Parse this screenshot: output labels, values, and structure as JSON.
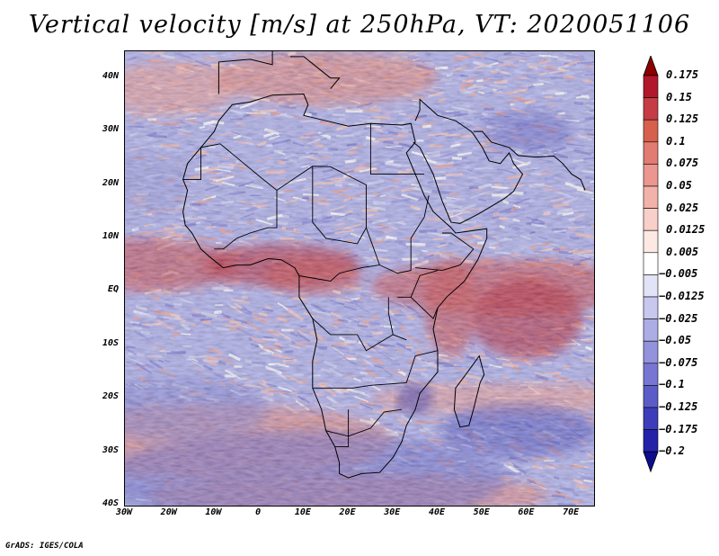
{
  "title": "Vertical velocity [m/s] at 250hPa, VT: 2020051106",
  "footer": "GrADS: IGES/COLA",
  "map": {
    "projection": "lat-lon",
    "lon_range": [
      -30,
      75
    ],
    "lat_range": [
      -40,
      45
    ],
    "field": "vertical velocity",
    "level": "250hPa",
    "units": "m/s",
    "valid_time": "2020051106",
    "overlays": [
      "coastlines",
      "country borders"
    ]
  },
  "lat_ticks": [
    {
      "value": 40,
      "label": "40N"
    },
    {
      "value": 30,
      "label": "30N"
    },
    {
      "value": 20,
      "label": "20N"
    },
    {
      "value": 10,
      "label": "10N"
    },
    {
      "value": 0,
      "label": "EQ"
    },
    {
      "value": -10,
      "label": "10S"
    },
    {
      "value": -20,
      "label": "20S"
    },
    {
      "value": -30,
      "label": "30S"
    },
    {
      "value": -40,
      "label": "40S"
    }
  ],
  "lon_ticks": [
    {
      "value": -30,
      "label": "30W"
    },
    {
      "value": -20,
      "label": "20W"
    },
    {
      "value": -10,
      "label": "10W"
    },
    {
      "value": 0,
      "label": "0"
    },
    {
      "value": 10,
      "label": "10E"
    },
    {
      "value": 20,
      "label": "20E"
    },
    {
      "value": 30,
      "label": "30E"
    },
    {
      "value": 40,
      "label": "40E"
    },
    {
      "value": 50,
      "label": "50E"
    },
    {
      "value": 60,
      "label": "60E"
    },
    {
      "value": 70,
      "label": "70E"
    }
  ],
  "colorbar": {
    "labels": [
      "0.175",
      "0.15",
      "0.125",
      "0.1",
      "0.075",
      "0.05",
      "0.025",
      "0.0125",
      "0.005",
      "−0.005",
      "−0.0125",
      "−0.025",
      "−0.05",
      "−0.075",
      "−0.1",
      "−0.125",
      "−0.175",
      "−0.2"
    ],
    "colors": [
      "#8b0000",
      "#b2182b",
      "#c63c44",
      "#d6604d",
      "#e27b72",
      "#eb968f",
      "#f2b2aa",
      "#f8d0c9",
      "#fde9e4",
      "#ffffff",
      "#e3e3f7",
      "#c8c8ef",
      "#adade6",
      "#9292dd",
      "#7777d3",
      "#5c5cc9",
      "#3d3dbb",
      "#2323aa",
      "#0c0c8f"
    ]
  }
}
